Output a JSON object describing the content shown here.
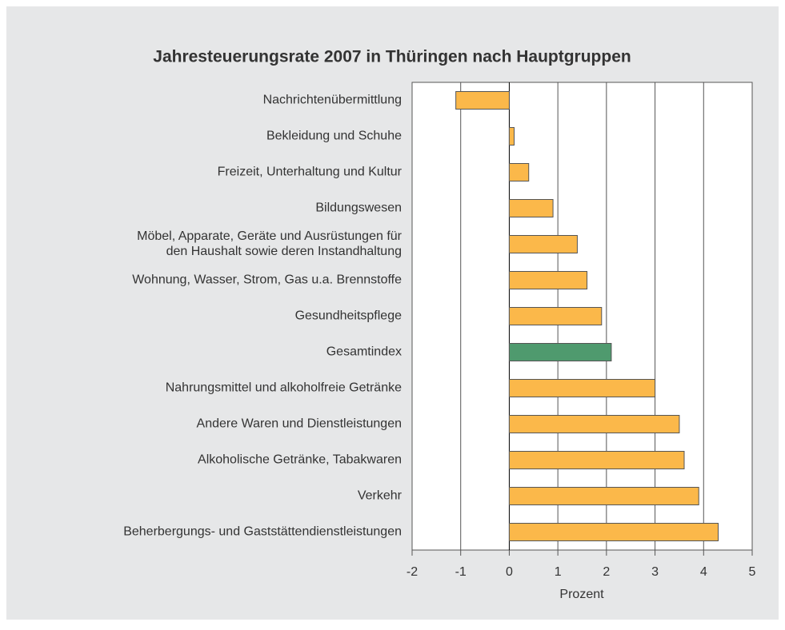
{
  "chart_data": {
    "type": "barh",
    "title": "Jahresteuerungsrate 2007 in Thüringen nach Hauptgruppen",
    "xlabel": "Prozent",
    "categories": [
      "Nachrichtenübermittlung",
      "Bekleidung und Schuhe",
      "Freizeit, Unterhaltung und Kultur",
      "Bildungswesen",
      "Möbel, Apparate, Geräte und Ausrüstungen für\nden Haushalt sowie deren Instandhaltung",
      "Wohnung, Wasser, Strom, Gas u.a. Brennstoffe",
      "Gesundheitspflege",
      "Gesamtindex",
      "Nahrungsmittel und alkoholfreie Getränke",
      "Andere Waren und Dienstleistungen",
      "Alkoholische Getränke, Tabakwaren",
      "Verkehr",
      "Beherbergungs- und Gaststättendienstleistungen"
    ],
    "values": [
      -1.1,
      0.1,
      0.4,
      0.9,
      1.4,
      1.6,
      1.9,
      2.1,
      3.0,
      3.5,
      3.6,
      3.9,
      4.3
    ],
    "colors": [
      "#fbb84a",
      "#fbb84a",
      "#fbb84a",
      "#fbb84a",
      "#fbb84a",
      "#fbb84a",
      "#fbb84a",
      "#4f9a6e",
      "#fbb84a",
      "#fbb84a",
      "#fbb84a",
      "#fbb84a",
      "#fbb84a"
    ],
    "xlim": [
      -2,
      5
    ],
    "xticks": [
      -2,
      -1,
      0,
      1,
      2,
      3,
      4,
      5
    ],
    "grid": true
  }
}
